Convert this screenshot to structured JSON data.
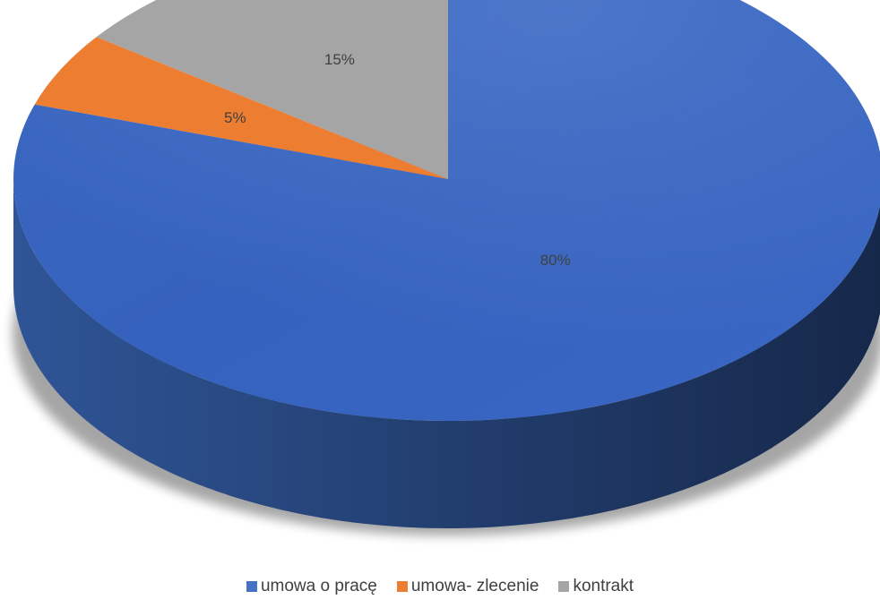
{
  "chart_data": {
    "type": "pie",
    "style": "3d",
    "slices": [
      {
        "name": "umowa o pracę",
        "value": 80,
        "label": "80%",
        "color": "#4472C4"
      },
      {
        "name": "umowa- zlecenie",
        "value": 5,
        "label": "5%",
        "color": "#ED7D31"
      },
      {
        "name": "kontrakt",
        "value": 15,
        "label": "15%",
        "color": "#A5A5A5"
      }
    ],
    "legend_position": "bottom",
    "title": ""
  }
}
